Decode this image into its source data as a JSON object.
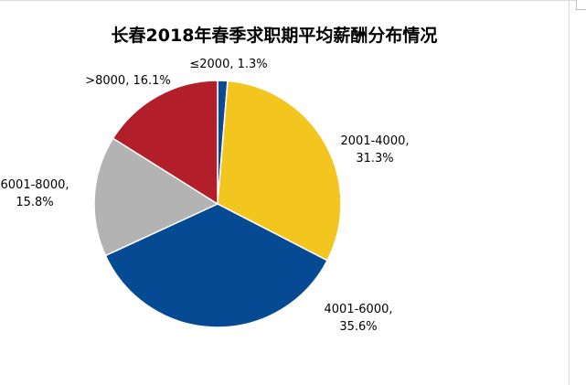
{
  "chart_data": {
    "type": "pie",
    "title": "长春2018年春季求职期平均薪酬分布情况",
    "categories": [
      "≤2000",
      "2001-4000",
      "4001-6000",
      "6001-8000",
      ">8000"
    ],
    "values": [
      1.3,
      31.3,
      35.6,
      15.8,
      16.1
    ],
    "value_labels": [
      "1.3%",
      "31.3%",
      "35.6%",
      "15.8%",
      "16.1%"
    ],
    "colors": [
      "#0c4a92",
      "#f2c51f",
      "#064a93",
      "#b3b3b3",
      "#b31e2b"
    ],
    "legend": "none",
    "start_angle_deg": 0,
    "direction": "clockwise"
  }
}
